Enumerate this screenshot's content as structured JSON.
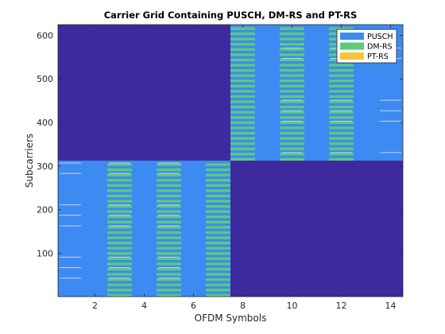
{
  "chart_data": {
    "type": "heatmap",
    "title": "Carrier Grid Containing PUSCH, DM-RS and PT-RS",
    "xlabel": "OFDM Symbols",
    "ylabel": "Subcarriers",
    "xlim": [
      0.5,
      14.5
    ],
    "ylim": [
      0.5,
      624.5
    ],
    "xticks": [
      2,
      4,
      6,
      8,
      10,
      12,
      14
    ],
    "yticks": [
      100,
      200,
      300,
      400,
      500,
      600
    ],
    "colors": {
      "background": "#3d2a9e",
      "PUSCH": "#3d8bf2",
      "DM-RS": "#5dca7a",
      "PT-RS": "#f5c53a",
      "ptrs_line": "#c8d2dc"
    },
    "legend": {
      "position": "top-right",
      "entries": [
        "PUSCH",
        "DM-RS",
        "PT-RS"
      ]
    },
    "pusch_allocations": [
      {
        "symbols": [
          1,
          7
        ],
        "subcarriers": [
          1,
          312
        ]
      },
      {
        "symbols": [
          8,
          14
        ],
        "subcarriers": [
          313,
          624
        ]
      }
    ],
    "dmrs": [
      {
        "symbols": [
          3,
          7
        ],
        "subcarriers": [
          1,
          312
        ],
        "period": 12,
        "band_height": 6
      },
      {
        "symbols": [
          8,
          12
        ],
        "subcarriers": [
          313,
          624
        ],
        "period": 12,
        "band_height": 6
      }
    ],
    "ptrs": [
      {
        "symbols": [
          1,
          5
        ],
        "subcarriers": [
          43,
          67,
          91,
          163,
          187,
          211,
          283,
          307
        ]
      },
      {
        "symbols": [
          10,
          14
        ],
        "subcarriers": [
          331,
          403,
          427,
          451,
          547,
          571
        ]
      }
    ]
  }
}
